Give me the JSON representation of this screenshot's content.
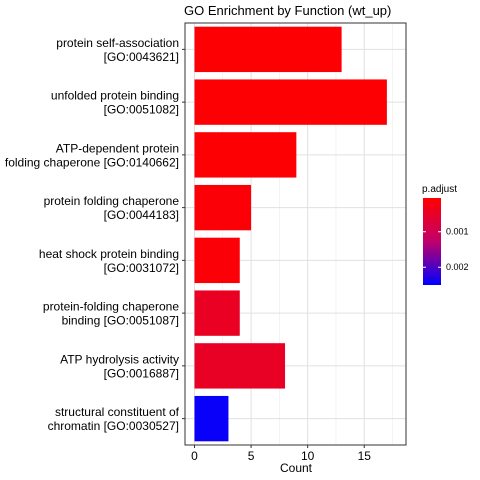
{
  "chart_data": {
    "type": "bar",
    "orientation": "horizontal",
    "title": "GO Enrichment by Function (wt_up)",
    "xlabel": "Count",
    "ylabel": "",
    "xlim": [
      0,
      17.85
    ],
    "xticks": [
      0,
      5,
      10,
      15
    ],
    "grid": true,
    "categories": [
      {
        "line1": "protein self-association",
        "line2": "[GO:0043621]"
      },
      {
        "line1": "unfolded protein binding",
        "line2": "[GO:0051082]"
      },
      {
        "line1": "ATP-dependent protein",
        "line2": "folding chaperone [GO:0140662]"
      },
      {
        "line1": "protein folding chaperone",
        "line2": "[GO:0044183]"
      },
      {
        "line1": "heat shock protein binding",
        "line2": "[GO:0031072]"
      },
      {
        "line1": "protein-folding chaperone",
        "line2": "binding [GO:0051087]"
      },
      {
        "line1": "ATP hydrolysis activity",
        "line2": "[GO:0016887]"
      },
      {
        "line1": "structural constituent of",
        "line2": "chromatin [GO:0030527]"
      }
    ],
    "values": [
      13,
      17,
      9,
      5,
      4,
      4,
      8,
      3
    ],
    "p_adjust": [
      0.0001,
      0.0001,
      0.0001,
      0.00012,
      0.00012,
      0.00045,
      0.00048,
      0.00245
    ],
    "legend": {
      "title": "p.adjust",
      "placement": "right",
      "range": [
        5e-05,
        0.0025
      ],
      "ticks": [
        {
          "value": 0.001,
          "label": "0.001"
        },
        {
          "value": 0.002,
          "label": "0.002"
        }
      ],
      "color_low": "#ff0000",
      "color_high": "#0000ff"
    }
  }
}
